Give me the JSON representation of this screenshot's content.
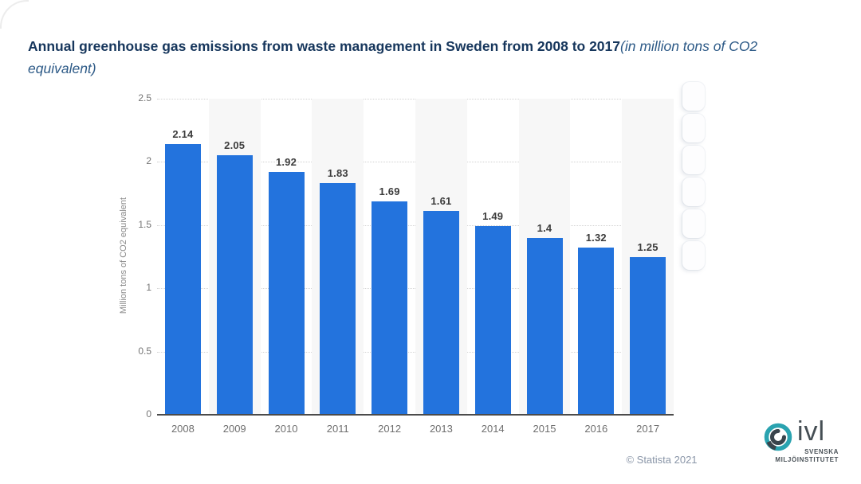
{
  "title": {
    "bold": "Annual greenhouse gas emissions from waste management in Sweden from 2008 to 2017",
    "italic": "(in million tons of CO2 equivalent)"
  },
  "chart_data": {
    "type": "bar",
    "title": "Annual greenhouse gas emissions from waste management in Sweden from 2008 to 2017 (in million tons of CO2 equivalent)",
    "categories": [
      "2008",
      "2009",
      "2010",
      "2011",
      "2012",
      "2013",
      "2014",
      "2015",
      "2016",
      "2017"
    ],
    "values": [
      2.14,
      2.05,
      1.92,
      1.83,
      1.69,
      1.61,
      1.49,
      1.4,
      1.32,
      1.25
    ],
    "value_labels": [
      "2.14",
      "2.05",
      "1.92",
      "1.83",
      "1.69",
      "1.61",
      "1.49",
      "1.4",
      "1.32",
      "1.25"
    ],
    "xlabel": "",
    "ylabel": "Million tons of CO2 equivalent",
    "ylim": [
      0,
      2.5
    ],
    "yticks": [
      0,
      0.5,
      1,
      1.5,
      2,
      2.5
    ],
    "ytick_labels": [
      "0",
      "0.5",
      "1",
      "1.5",
      "2",
      "2.5"
    ],
    "grid": "horizontal-dotted",
    "legend": "none",
    "bar_color": "#2373dd",
    "band_alt_color": "#f7f7f7",
    "label_color": "#3c3c3c"
  },
  "side_toolbar": {
    "button_count": 6
  },
  "footer": {
    "copyright": "© Statista 2021"
  },
  "logo": {
    "brand": "ivl",
    "subline1": "SVENSKA",
    "subline2": "MILJÖINSTITUTET",
    "teal": "#2aa3b0",
    "dark": "#39444c"
  }
}
